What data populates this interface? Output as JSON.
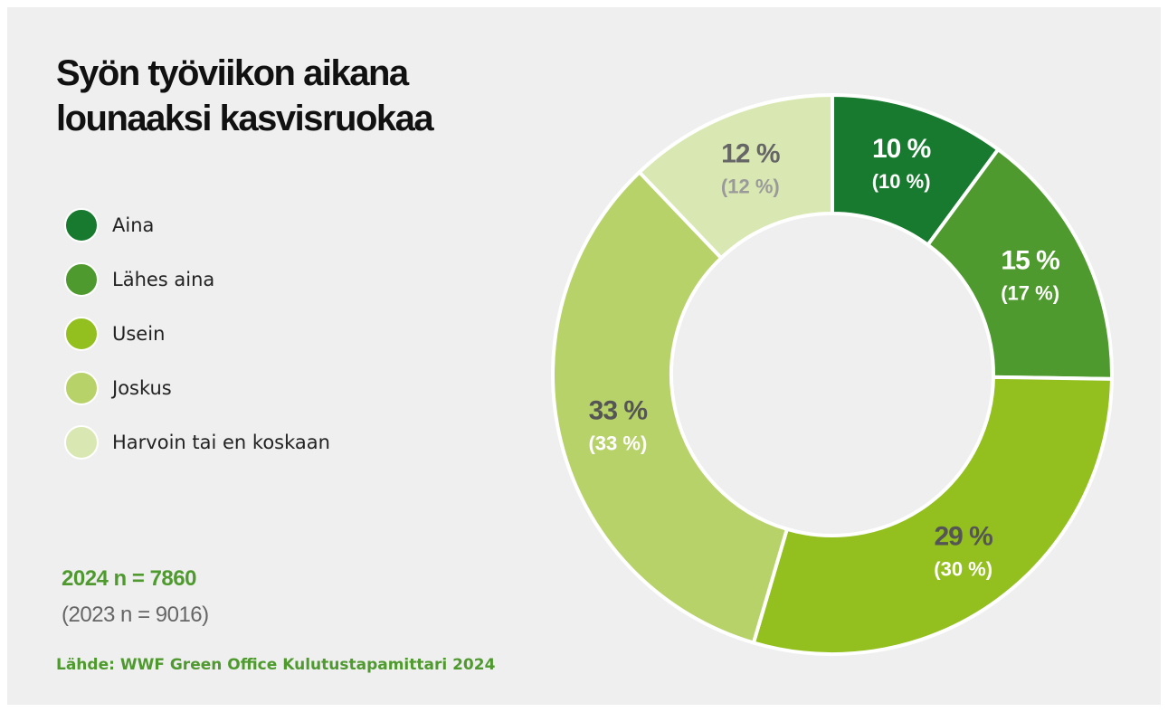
{
  "chart_data": {
    "type": "pie",
    "title": "Syön työviikon aikana lounaaksi kasvisruokaa",
    "categories": [
      "Aina",
      "Lähes aina",
      "Usein",
      "Joskus",
      "Harvoin tai en koskaan"
    ],
    "values": [
      10,
      15,
      29,
      33,
      12
    ],
    "value_labels": [
      "10 %",
      "15 %",
      "29 %",
      "33 %",
      "12 %"
    ],
    "previous_values": [
      10,
      17,
      30,
      33,
      12
    ],
    "previous_value_labels": [
      "(10 %)",
      "(17 %)",
      "(30 %)",
      "(33 %)",
      "(12 %)"
    ],
    "colors": [
      "#187a2f",
      "#4f9a2e",
      "#93c01f",
      "#b8d26a",
      "#d9e8b2"
    ],
    "label_colors": [
      "#ffffff",
      "#ffffff",
      "#555555",
      "#555555",
      "#666666"
    ],
    "previous_label_colors": [
      "#ffffff",
      "#ffffff",
      "#ffffff",
      "#ffffff",
      "#9a9a9a"
    ],
    "notes": [
      "2024 n = 7860",
      "(2023 n = 9016)"
    ],
    "source": "Lähde: WWF Green Office Kulutustapamittari 2024"
  }
}
